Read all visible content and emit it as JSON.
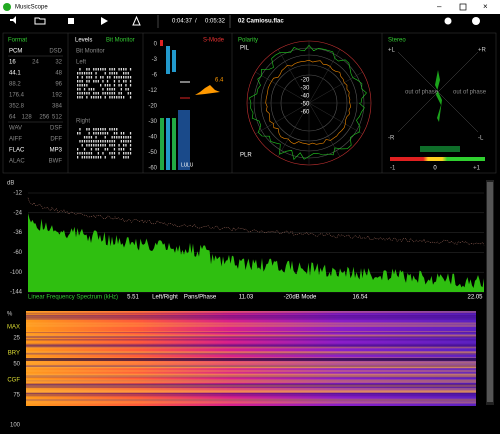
{
  "window": {
    "title": "MusicScope"
  },
  "toolbar": {
    "elapsed": "0:04:37",
    "separator": "/",
    "total": "0:05:32",
    "track": "02 Camiosu.flac"
  },
  "format": {
    "title": "Format",
    "rows": [
      [
        "PCM",
        "DSD"
      ],
      [
        "16",
        "24",
        "32"
      ],
      [
        "44.1",
        "48"
      ],
      [
        "88.2",
        "96"
      ],
      [
        "176.4",
        "192"
      ],
      [
        "352.8",
        "384"
      ],
      [
        "64",
        "128",
        "256",
        "512"
      ],
      [
        "WAV",
        "DSF"
      ],
      [
        "AIFF",
        "DFF"
      ],
      [
        "FLAC",
        "MP3"
      ],
      [
        "ALAC",
        "BWF"
      ]
    ]
  },
  "levels": {
    "title": "Levels",
    "mode": "Bit Monitor",
    "subtitle": "Bit Monitor",
    "left": "Left",
    "right": "Right"
  },
  "meter": {
    "mode": "S-Mode",
    "scale": [
      "0",
      "-3",
      "-6",
      "-12",
      "-20",
      "-30",
      "-40",
      "-50",
      "-60"
    ],
    "peak": "6.4",
    "units": [
      "LU",
      "LU"
    ]
  },
  "polarity": {
    "title": "Polarity",
    "top": "PIL",
    "bottom": "PLR",
    "rings": [
      "-20",
      "-30",
      "-40",
      "-50",
      "-60"
    ]
  },
  "stereo": {
    "title": "Stereo",
    "top_left": "+L",
    "top_right": "+R",
    "bottom_left": "-R",
    "bottom_right": "-L",
    "left_phase": "out of phase",
    "right_phase": "out of phase",
    "scale": [
      "-1",
      "0",
      "+1"
    ]
  },
  "spectrum": {
    "unit": "dB",
    "yticks": [
      "-12",
      "-24",
      "-36",
      "-60",
      "-100",
      "-144"
    ],
    "title": "Linear Frequency Spectrum (kHz)",
    "labels": [
      "5.51",
      "Left/Right",
      "Pans/Phase",
      "11.03",
      "-20dB Mode",
      "16.54",
      "22.05"
    ]
  },
  "spectrogram": {
    "unit": "%",
    "labels": [
      "MAX",
      "25",
      "BRY",
      "50",
      "CGF",
      "75",
      "100"
    ]
  }
}
